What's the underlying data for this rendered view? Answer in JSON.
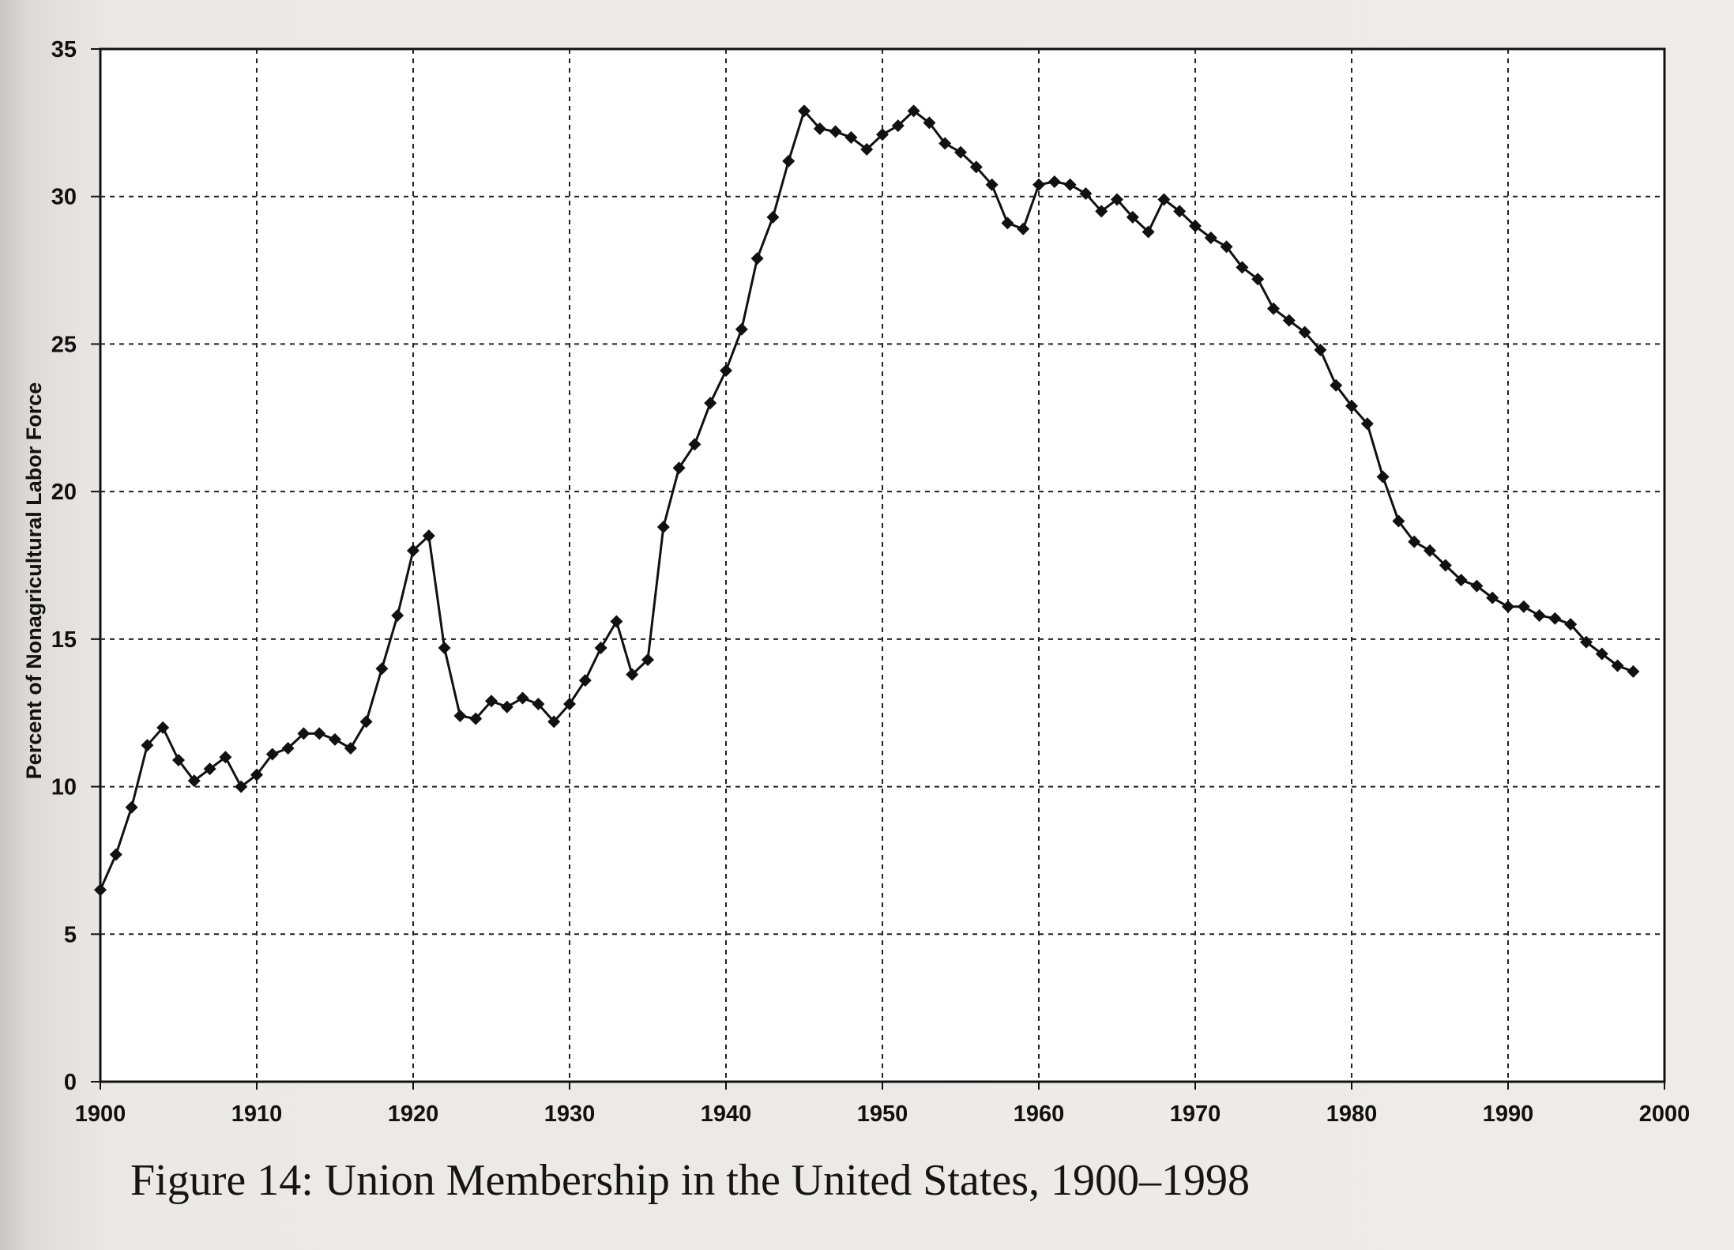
{
  "caption": "Figure 14: Union Membership in the United States, 1900–1998",
  "chart_data": {
    "type": "line",
    "title": "",
    "xlabel": "",
    "ylabel": "Percent of Nonagricultural Labor Force",
    "xlim": [
      1900,
      2000
    ],
    "ylim": [
      0,
      35
    ],
    "x_ticks": [
      1900,
      1910,
      1920,
      1930,
      1940,
      1950,
      1960,
      1970,
      1980,
      1990,
      2000
    ],
    "y_ticks": [
      0,
      5,
      10,
      15,
      20,
      25,
      30,
      35
    ],
    "grid": true,
    "marker": "diamond",
    "colors": {
      "line": "#111111",
      "grid": "#222222",
      "background": "#ffffff"
    },
    "series": [
      {
        "x": [
          1900,
          1901,
          1902,
          1903,
          1904,
          1905,
          1906,
          1907,
          1908,
          1909,
          1910,
          1911,
          1912,
          1913,
          1914,
          1915,
          1916,
          1917,
          1918,
          1919,
          1920,
          1921,
          1922,
          1923,
          1924,
          1925,
          1926,
          1927,
          1928,
          1929,
          1930,
          1931,
          1932,
          1933,
          1934,
          1935,
          1936,
          1937,
          1938,
          1939,
          1940,
          1941,
          1942,
          1943,
          1944,
          1945,
          1946,
          1947,
          1948,
          1949,
          1950,
          1951,
          1952,
          1953,
          1954,
          1955,
          1956,
          1957,
          1958,
          1959,
          1960,
          1961,
          1962,
          1963,
          1964,
          1965,
          1966,
          1967,
          1968,
          1969,
          1970,
          1971,
          1972,
          1973,
          1974,
          1975,
          1976,
          1977,
          1978,
          1979,
          1980,
          1981,
          1982,
          1983,
          1984,
          1985,
          1986,
          1987,
          1988,
          1989,
          1990,
          1991,
          1992,
          1993,
          1994,
          1995,
          1996,
          1997,
          1998
        ],
        "y": [
          6.5,
          7.7,
          9.3,
          11.4,
          12.0,
          10.9,
          10.2,
          10.6,
          11.0,
          10.0,
          10.4,
          11.1,
          11.3,
          11.8,
          11.8,
          11.6,
          11.3,
          12.2,
          14.0,
          15.8,
          18.0,
          18.5,
          14.7,
          12.4,
          12.3,
          12.9,
          12.7,
          13.0,
          12.8,
          12.2,
          12.8,
          13.6,
          14.7,
          15.6,
          13.8,
          14.3,
          18.8,
          20.8,
          21.6,
          23.0,
          24.1,
          25.5,
          27.9,
          29.3,
          31.2,
          32.9,
          32.3,
          32.2,
          32.0,
          31.6,
          32.1,
          32.4,
          32.9,
          32.5,
          31.8,
          31.5,
          31.0,
          30.4,
          29.1,
          28.9,
          30.4,
          30.5,
          30.4,
          30.1,
          29.5,
          29.9,
          29.3,
          28.8,
          29.9,
          29.5,
          29.0,
          28.6,
          28.3,
          27.6,
          27.2,
          26.2,
          25.8,
          25.4,
          24.8,
          23.6,
          22.9,
          22.3,
          20.5,
          19.0,
          18.3,
          18.0,
          17.5,
          17.0,
          16.8,
          16.4,
          16.1,
          16.1,
          15.8,
          15.7,
          15.5,
          14.9,
          14.5,
          14.1,
          13.9
        ]
      }
    ]
  }
}
